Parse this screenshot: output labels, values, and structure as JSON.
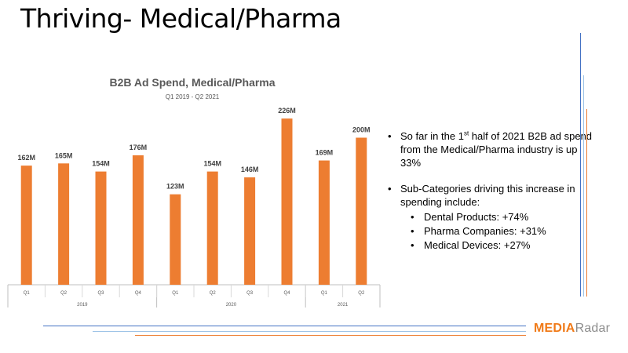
{
  "slide": {
    "title": "Thriving- Medical/Pharma"
  },
  "chart_data": {
    "type": "bar",
    "title": "B2B Ad Spend, Medical/Pharma",
    "subtitle": "Q1 2019 - Q2 2021",
    "categories": [
      "Q1",
      "Q2",
      "Q3",
      "Q4",
      "Q1",
      "Q2",
      "Q3",
      "Q4",
      "Q1",
      "Q2"
    ],
    "groups": [
      {
        "label": "2019",
        "count": 4
      },
      {
        "label": "2020",
        "count": 4
      },
      {
        "label": "2021",
        "count": 2
      }
    ],
    "values": [
      162,
      165,
      154,
      176,
      123,
      154,
      146,
      226,
      169,
      200
    ],
    "data_labels": [
      "162M",
      "165M",
      "154M",
      "176M",
      "123M",
      "154M",
      "146M",
      "226M",
      "169M",
      "200M"
    ],
    "ylim": [
      0,
      240
    ],
    "xlabel": "",
    "ylabel": "",
    "grid": false,
    "bar_color": "#ED7D31"
  },
  "bullets": {
    "point1_pre": "So far in the 1",
    "point1_sup": "st",
    "point1_post": " half of 2021  B2B ad spend from the Medical/Pharma industry is up 33%",
    "point2": "Sub-Categories driving this increase in spending include:",
    "subitems": [
      "Dental Products: +74%",
      "Pharma Companies: +31%",
      "Medical Devices: +27%"
    ]
  },
  "logo": {
    "part1": "MEDIA",
    "part2": "Radar"
  },
  "colors": {
    "accent_orange": "#ED7D31",
    "accent_blue": "#4472C4",
    "logo_orange": "#F07A18",
    "logo_gray": "#8C8C8C"
  }
}
